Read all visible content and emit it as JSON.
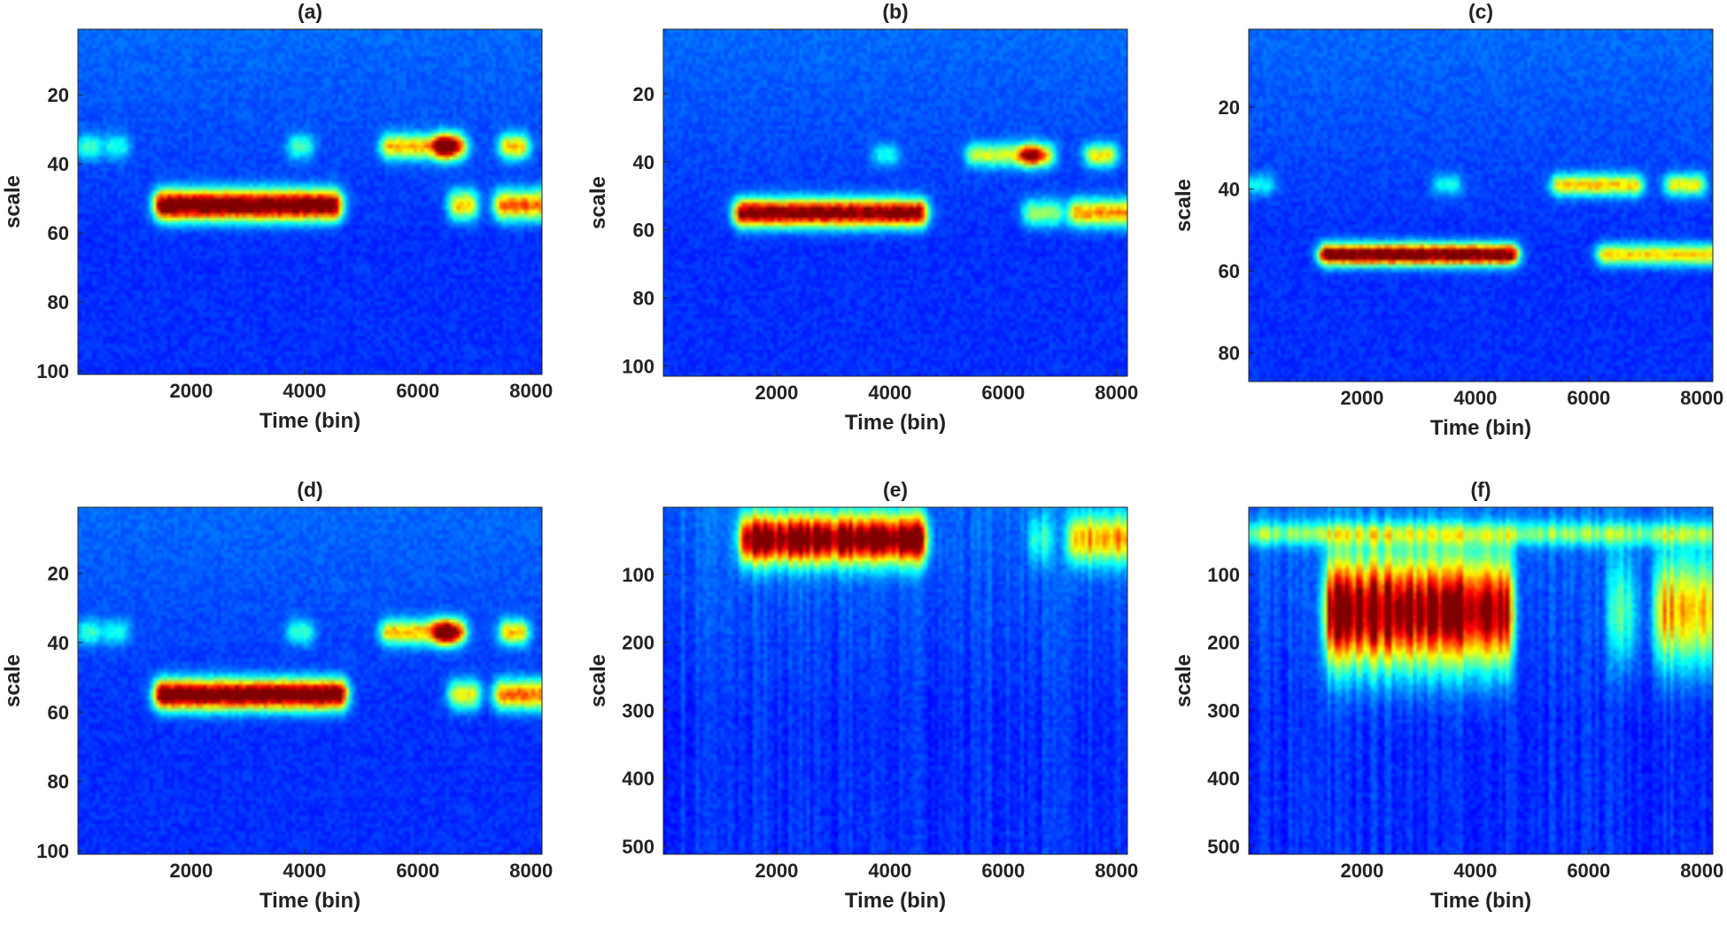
{
  "colors": {
    "colormap": [
      "#00008f",
      "#0000ff",
      "#0080ff",
      "#00ffff",
      "#80ff80",
      "#ffff00",
      "#ff8000",
      "#ff0000",
      "#800000"
    ],
    "background": "#1a3fa0"
  },
  "chart_data": [
    {
      "type": "heatmap",
      "title": "(a)",
      "xlabel": "Time (bin)",
      "ylabel": "scale",
      "xlim": [
        0,
        8192
      ],
      "ylim": [
        1,
        101
      ],
      "xticks": [
        2000,
        4000,
        6000,
        8000
      ],
      "yticks": [
        20,
        40,
        60,
        80,
        100
      ],
      "ridges": [
        {
          "scale": 52,
          "scale_width": 3,
          "segments": [
            [
              1500,
              4500,
              0.95
            ],
            [
              6700,
              6900,
              0.5
            ],
            [
              7500,
              8192,
              0.6
            ]
          ]
        },
        {
          "scale": 35,
          "scale_width": 2.5,
          "segments": [
            [
              5500,
              6500,
              0.5
            ],
            [
              6450,
              6700,
              0.62
            ],
            [
              7600,
              7800,
              0.5
            ],
            [
              150,
              250,
              0.25
            ],
            [
              600,
              750,
              0.2
            ],
            [
              3850,
              4000,
              0.25
            ]
          ]
        }
      ]
    },
    {
      "type": "heatmap",
      "title": "(b)",
      "xlabel": "Time (bin)",
      "ylabel": "scale",
      "xlim": [
        0,
        8192
      ],
      "ylim": [
        1,
        103
      ],
      "xticks": [
        2000,
        4000,
        6000,
        8000
      ],
      "yticks": [
        20,
        40,
        60,
        80,
        100
      ],
      "ridges": [
        {
          "scale": 55,
          "scale_width": 2.8,
          "segments": [
            [
              1400,
              4500,
              0.88
            ],
            [
              6500,
              6900,
              0.35
            ],
            [
              7300,
              8192,
              0.55
            ]
          ]
        },
        {
          "scale": 38,
          "scale_width": 2.3,
          "segments": [
            [
              5500,
              6500,
              0.4
            ],
            [
              6450,
              6750,
              0.5
            ],
            [
              7600,
              7850,
              0.45
            ],
            [
              3850,
              4000,
              0.2
            ]
          ]
        }
      ]
    },
    {
      "type": "heatmap",
      "title": "(c)",
      "xlabel": "Time (bin)",
      "ylabel": "scale",
      "xlim": [
        0,
        8192
      ],
      "ylim": [
        1,
        87
      ],
      "xticks": [
        2000,
        4000,
        6000,
        8000
      ],
      "yticks": [
        20,
        40,
        60,
        80
      ],
      "ridges": [
        {
          "scale": 56,
          "scale_width": 1.8,
          "segments": [
            [
              1400,
              4600,
              0.95
            ],
            [
              6300,
              8192,
              0.5
            ]
          ]
        },
        {
          "scale": 39,
          "scale_width": 1.8,
          "segments": [
            [
              5500,
              6800,
              0.5
            ],
            [
              7500,
              7900,
              0.45
            ],
            [
              3400,
              3600,
              0.2
            ],
            [
              100,
              300,
              0.2
            ]
          ]
        }
      ]
    },
    {
      "type": "heatmap",
      "title": "(d)",
      "xlabel": "Time (bin)",
      "ylabel": "scale",
      "xlim": [
        0,
        8192
      ],
      "ylim": [
        1,
        101
      ],
      "xticks": [
        2000,
        4000,
        6000,
        8000
      ],
      "yticks": [
        20,
        40,
        60,
        80,
        100
      ],
      "ridges": [
        {
          "scale": 55,
          "scale_width": 3,
          "segments": [
            [
              1500,
              4600,
              0.95
            ],
            [
              6700,
              6950,
              0.45
            ],
            [
              7500,
              8192,
              0.6
            ]
          ]
        },
        {
          "scale": 37,
          "scale_width": 2.5,
          "segments": [
            [
              5500,
              6500,
              0.5
            ],
            [
              6450,
              6700,
              0.62
            ],
            [
              7600,
              7800,
              0.5
            ],
            [
              150,
              250,
              0.25
            ],
            [
              600,
              750,
              0.2
            ],
            [
              3850,
              4000,
              0.25
            ]
          ]
        }
      ]
    },
    {
      "type": "heatmap",
      "title": "(e)",
      "xlabel": "Time (bin)",
      "ylabel": "scale",
      "xlim": [
        0,
        8192
      ],
      "ylim": [
        1,
        512
      ],
      "xticks": [
        2000,
        4000,
        6000,
        8000
      ],
      "yticks": [
        100,
        200,
        300,
        400,
        500
      ],
      "ridges": [
        {
          "scale": 48,
          "scale_width": 25,
          "segments": [
            [
              1500,
              4500,
              0.85
            ],
            [
              7300,
              8192,
              0.5
            ],
            [
              6600,
              6700,
              0.2
            ]
          ]
        }
      ]
    },
    {
      "type": "heatmap",
      "title": "(f)",
      "xlabel": "Time (bin)",
      "ylabel": "scale",
      "xlim": [
        0,
        8192
      ],
      "ylim": [
        1,
        512
      ],
      "xticks": [
        2000,
        4000,
        6000,
        8000
      ],
      "yticks": [
        100,
        200,
        300,
        400,
        500
      ],
      "ridges": [
        {
          "scale": 155,
          "scale_width": 55,
          "segments": [
            [
              1500,
              4500,
              0.85
            ],
            [
              7300,
              8192,
              0.5
            ],
            [
              6500,
              6700,
              0.25
            ]
          ]
        },
        {
          "scale": 40,
          "scale_width": 12,
          "segments": [
            [
              0,
              8192,
              0.3
            ]
          ]
        }
      ]
    }
  ]
}
